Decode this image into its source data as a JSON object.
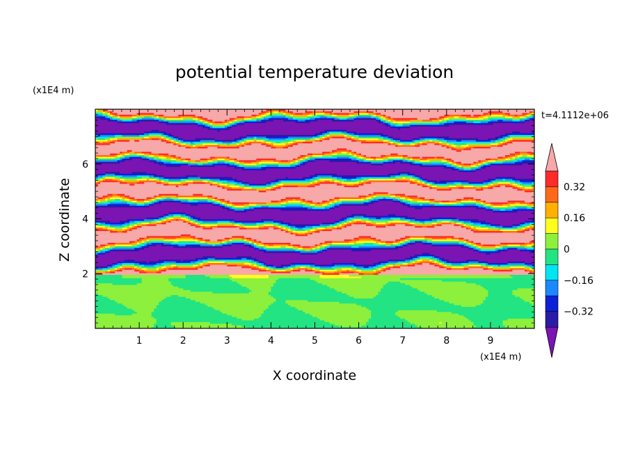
{
  "chart_data": {
    "type": "heatmap",
    "title": "potential temperature deviation",
    "xlabel": "X coordinate",
    "ylabel": "Z coordinate",
    "x_unit": "(x1E4 m)",
    "y_unit": "(x1E4 m)",
    "time_label": "t=4.1112e+06",
    "xlim": [
      0,
      10
    ],
    "ylim": [
      0,
      8
    ],
    "x_ticks": [
      "1",
      "2",
      "3",
      "4",
      "5",
      "6",
      "7",
      "8",
      "9"
    ],
    "y_ticks": [
      "2",
      "4",
      "6"
    ],
    "colorbar": {
      "labels": [
        "0.32",
        "0.16",
        "0",
        "−0.16",
        "−0.32"
      ],
      "label_values": [
        0.32,
        0.16,
        0,
        -0.16,
        -0.32
      ],
      "levels": [
        -0.4,
        -0.32,
        -0.24,
        -0.16,
        -0.08,
        0,
        0.08,
        0.16,
        0.24,
        0.32,
        0.4
      ],
      "colors": [
        "#7a14b3",
        "#2b1aa3",
        "#0d20d8",
        "#1a88ff",
        "#00e4f4",
        "#22e482",
        "#8cf03c",
        "#ffff1e",
        "#ffb000",
        "#ff6a1a",
        "#ff2a2a",
        "#f7a8a8"
      ]
    },
    "layers": [
      {
        "z_from": 7.5,
        "z_to": 8.0,
        "dominant": "above 0.4 / below -0.4 alternating"
      },
      {
        "z_from": 2.1,
        "z_to": 7.5,
        "dominant": "alternating layers of strong positive (>0.4) and strong negative (<-0.4) deviation with sharp gradients"
      },
      {
        "z_from": 0.0,
        "z_to": 2.0,
        "dominant": "weak deviation, approximately -0.08 to 0.08"
      }
    ]
  }
}
